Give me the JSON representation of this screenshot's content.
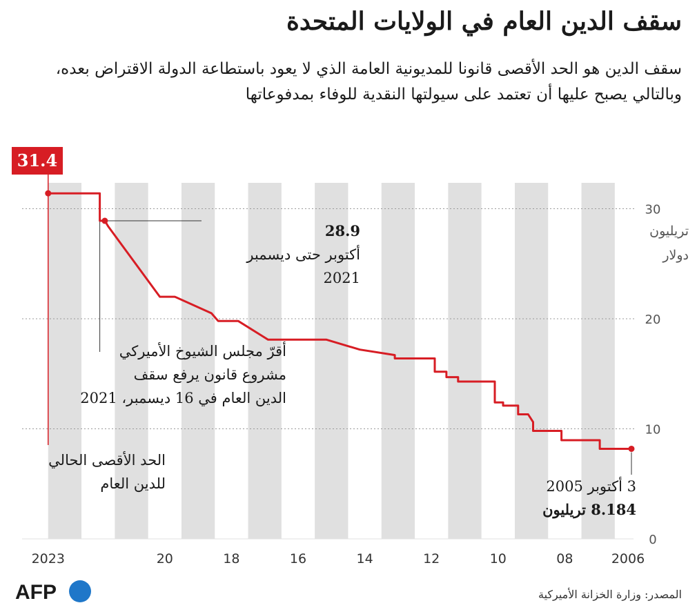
{
  "title": "سقف الدين العام في الولايات المتحدة",
  "subtitle": "سقف الدين هو الحد الأقصى قانونا للمديونية العامة الذي لا يعود باستطاعة الدولة الاقتراض بعده، وبالتالي يصبح عليها أن تعتمد على سيولتها النقدية للوفاء بمدفوعاتها",
  "source": "المصدر: وزارة الخزانة الأميركية",
  "logo_text": "AFP",
  "colors": {
    "line": "#d71d24",
    "band": "#e0e0e0",
    "grid": "#999999"
  },
  "chart_data": {
    "type": "line",
    "title": "سقف الدين العام في الولايات المتحدة",
    "ylabel": "تريليون دولار",
    "unit_lines": [
      "تريليون",
      "دولار"
    ],
    "xlabel": "",
    "x_direction": "right-to-left",
    "xlim": [
      2006,
      2023.7
    ],
    "ylim": [
      0,
      32
    ],
    "y_ticks": [
      0,
      10,
      20,
      30
    ],
    "x_ticks": [
      {
        "value": 2006,
        "label": "2006"
      },
      {
        "value": 2008,
        "label": "08"
      },
      {
        "value": 2010,
        "label": "10"
      },
      {
        "value": 2012,
        "label": "12"
      },
      {
        "value": 2014,
        "label": "14"
      },
      {
        "value": 2016,
        "label": "16"
      },
      {
        "value": 2018,
        "label": "18"
      },
      {
        "value": 2020,
        "label": "20"
      },
      {
        "value": 2023.5,
        "label": "2023"
      }
    ],
    "series": [
      {
        "name": "سقف الدين",
        "points": [
          [
            2006.0,
            8.184
          ],
          [
            2006.95,
            8.184
          ],
          [
            2006.95,
            8.965
          ],
          [
            2008.1,
            8.965
          ],
          [
            2008.1,
            9.815
          ],
          [
            2008.95,
            9.815
          ],
          [
            2008.95,
            10.615
          ],
          [
            2009.1,
            11.315
          ],
          [
            2009.4,
            11.315
          ],
          [
            2009.4,
            12.104
          ],
          [
            2009.85,
            12.104
          ],
          [
            2009.85,
            12.394
          ],
          [
            2010.1,
            12.394
          ],
          [
            2010.1,
            14.294
          ],
          [
            2011.2,
            14.294
          ],
          [
            2011.2,
            14.694
          ],
          [
            2011.55,
            14.694
          ],
          [
            2011.55,
            15.194
          ],
          [
            2011.9,
            15.194
          ],
          [
            2011.9,
            16.394
          ],
          [
            2013.1,
            16.394
          ],
          [
            2013.1,
            16.7
          ],
          [
            2014.15,
            17.2
          ],
          [
            2015.15,
            18.1
          ],
          [
            2016.9,
            18.1
          ],
          [
            2017.8,
            19.8
          ],
          [
            2018.4,
            19.8
          ],
          [
            2018.6,
            20.5
          ],
          [
            2019.7,
            22.0
          ],
          [
            2020.15,
            22.0
          ],
          [
            2021.7,
            28.4
          ],
          [
            2021.8,
            28.9
          ],
          [
            2021.95,
            28.9
          ],
          [
            2021.95,
            31.4
          ],
          [
            2023.5,
            31.4
          ]
        ]
      }
    ],
    "annotations": {
      "peak_2023": {
        "x": 2023.5,
        "y": 31.4,
        "value_label": "31.4"
      },
      "peak_2021": {
        "x": 2021.8,
        "y": 28.9,
        "value_label": "28.9",
        "lines": [
          "أكتوبر حتى ديسمبر",
          "2021"
        ]
      },
      "start_2005": {
        "x": 2006.0,
        "y": 8.184,
        "lines": [
          "3 أكتوبر 2005"
        ],
        "value_label": "8.184 تريليون"
      },
      "senate_note": [
        "أقرّ مجلس الشيوخ الأميركي",
        "مشروع قانون يرفع سقف",
        "الدين العام في 16 ديسمبر، 2021"
      ],
      "current_note": [
        "الحد الأقصى الحالي",
        "للدين العام"
      ]
    }
  }
}
